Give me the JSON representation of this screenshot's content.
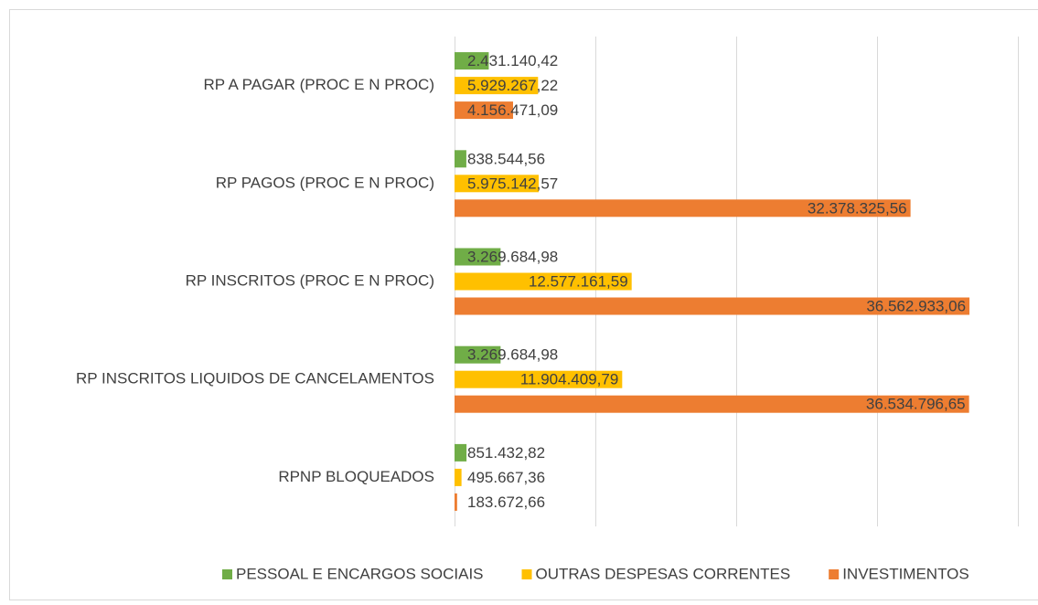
{
  "chart_data": {
    "type": "bar",
    "orientation": "horizontal",
    "categories": [
      "RP A PAGAR (PROC E N PROC)",
      "RP PAGOS (PROC E N PROC)",
      "RP INSCRITOS (PROC E N PROC)",
      "RP INSCRITOS LIQUIDOS DE CANCELAMENTOS",
      "RPNP BLOQUEADOS"
    ],
    "series": [
      {
        "name": "PESSOAL E ENCARGOS SOCIAIS",
        "color": "#70ad47",
        "values": [
          2431140.42,
          838544.56,
          3269684.98,
          3269684.98,
          851432.82
        ],
        "value_labels": [
          "2.431.140,42",
          "838.544,56",
          "3.269.684,98",
          "3.269.684,98",
          "851.432,82"
        ]
      },
      {
        "name": "OUTRAS DESPESAS CORRENTES",
        "color": "#ffc000",
        "values": [
          5929267.22,
          5975142.57,
          12577161.59,
          11904409.79,
          495667.36
        ],
        "value_labels": [
          "5.929.267,22",
          "5.975.142,57",
          "12.577.161,59",
          "11.904.409,79",
          "495.667,36"
        ]
      },
      {
        "name": "INVESTIMENTOS",
        "color": "#ed7d31",
        "values": [
          4156471.09,
          32378325.56,
          36562933.06,
          36534796.65,
          183672.66
        ],
        "value_labels": [
          "4.156.471,09",
          "32.378.325,56",
          "36.562.933,06",
          "36.534.796,65",
          "183.672,66"
        ]
      }
    ],
    "xlim": [
      0,
      40000000
    ],
    "xticks": [
      0,
      10000000,
      20000000,
      30000000,
      40000000
    ],
    "grid": true,
    "legend": "bottom"
  }
}
